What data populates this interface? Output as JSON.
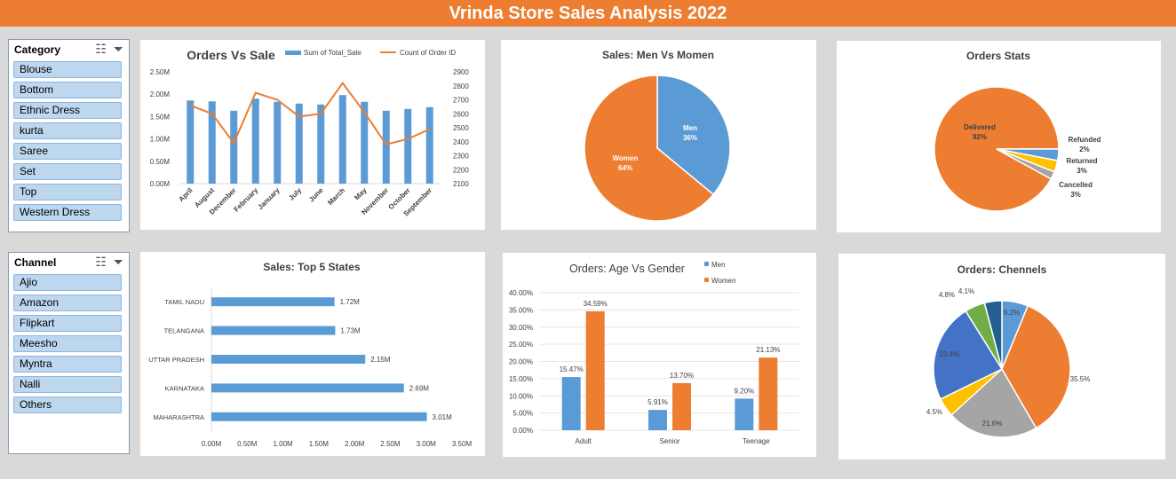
{
  "title": "Vrinda Store Sales Analysis 2022",
  "category_slicer": {
    "title": "Category",
    "icons": [
      "multi-select-icon",
      "clear-filter-icon"
    ],
    "items": [
      "Blouse",
      "Bottom",
      "Ethnic Dress",
      "kurta",
      "Saree",
      "Set",
      "Top",
      "Western Dress"
    ]
  },
  "channel_slicer": {
    "title": "Channel",
    "icons": [
      "multi-select-icon",
      "clear-filter-icon"
    ],
    "items": [
      "Ajio",
      "Amazon",
      "Flipkart",
      "Meesho",
      "Myntra",
      "Nalli",
      "Others"
    ]
  },
  "colors": {
    "blue": "#5b9bd5",
    "orange": "#ed7d31",
    "gray": "#a5a5a5",
    "yellow": "#ffc000",
    "darkblue": "#4472c4",
    "green": "#70ad47",
    "navy": "#255e91"
  },
  "chart_data": [
    {
      "id": "orders_vs_sale",
      "type": "bar",
      "title": "Orders Vs Sale",
      "categories": [
        "April",
        "August",
        "December",
        "February",
        "January",
        "July",
        "June",
        "March",
        "May",
        "November",
        "October",
        "September"
      ],
      "series": [
        {
          "name": "Sum of Total_Sale",
          "type": "bar",
          "axis": "left",
          "values": [
            1.86,
            1.84,
            1.63,
            1.9,
            1.83,
            1.79,
            1.77,
            1.98,
            1.83,
            1.63,
            1.67,
            1.71
          ]
        },
        {
          "name": "Count of Order ID",
          "type": "line",
          "axis": "right",
          "values": [
            2660,
            2600,
            2390,
            2750,
            2700,
            2580,
            2600,
            2820,
            2610,
            2380,
            2420,
            2490
          ]
        }
      ],
      "ylim": [
        0,
        2.5
      ],
      "yticks": [
        "0.00M",
        "0.50M",
        "1.00M",
        "1.50M",
        "2.00M",
        "2.50M"
      ],
      "y2lim": [
        2100,
        2900
      ],
      "y2ticks": [
        "2100",
        "2200",
        "2300",
        "2400",
        "2500",
        "2600",
        "2700",
        "2800",
        "2900"
      ],
      "legend": "top-right"
    },
    {
      "id": "sales_men_women",
      "type": "pie",
      "title": "Sales: Men Vs Momen",
      "labels": [
        "Men",
        "Women"
      ],
      "values": [
        36,
        64
      ],
      "display": [
        "36%",
        "64%"
      ]
    },
    {
      "id": "orders_stats",
      "type": "pie",
      "title": "Orders Stats",
      "labels": [
        "Delivered",
        "Refunded",
        "Returned",
        "Cancelled"
      ],
      "values": [
        92,
        2,
        3,
        3
      ],
      "display": [
        "92%",
        "2%",
        "3%",
        "3%"
      ]
    },
    {
      "id": "top5_states",
      "type": "bar",
      "orientation": "horizontal",
      "title": "Sales: Top 5 States",
      "categories": [
        "TAMIL NADU",
        "TELANGANA",
        "UTTAR PRADESH",
        "KARNATAKA",
        "MAHARASHTRA"
      ],
      "values": [
        1.72,
        1.73,
        2.15,
        2.69,
        3.01
      ],
      "data_labels": [
        "1.72M",
        "1.73M",
        "2.15M",
        "2.69M",
        "3.01M"
      ],
      "xlim": [
        0,
        3.5
      ],
      "xticks": [
        "0.00M",
        "0.50M",
        "1.00M",
        "1.50M",
        "2.00M",
        "2.50M",
        "3.00M",
        "3.50M"
      ]
    },
    {
      "id": "age_vs_gender",
      "type": "bar",
      "title": "Orders: Age Vs Gender",
      "categories": [
        "Adult",
        "Senior",
        "Teenage"
      ],
      "series": [
        {
          "name": "Men",
          "values": [
            15.47,
            5.91,
            9.2
          ],
          "data_labels": [
            "15.47%",
            "5.91%",
            "9.20%"
          ]
        },
        {
          "name": "Women",
          "values": [
            34.59,
            13.7,
            21.13
          ],
          "data_labels": [
            "34.59%",
            "13.70%",
            "21.13%"
          ]
        }
      ],
      "ylim": [
        0,
        40
      ],
      "yticks": [
        "0.00%",
        "5.00%",
        "10.00%",
        "15.00%",
        "20.00%",
        "25.00%",
        "30.00%",
        "35.00%",
        "40.00%"
      ],
      "legend": "top-right"
    },
    {
      "id": "orders_channels",
      "type": "pie",
      "title": "Orders: Chennels",
      "values": [
        6.2,
        35.5,
        21.6,
        4.5,
        23.4,
        4.8,
        4.1
      ],
      "display": [
        "6.2%",
        "35.5%",
        "21.6%",
        "4.5%",
        "23.4%",
        "4.8%",
        "4.1%"
      ]
    }
  ]
}
